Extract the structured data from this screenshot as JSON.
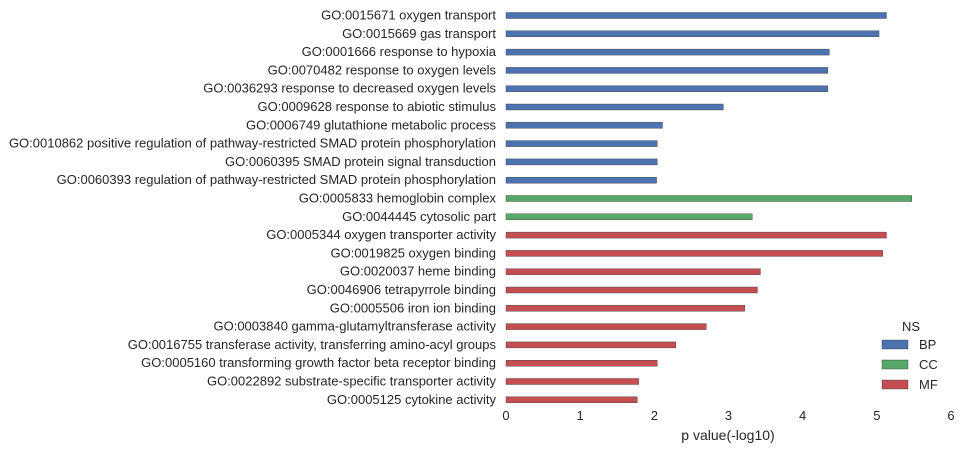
{
  "chart_data": {
    "type": "bar",
    "orientation": "horizontal",
    "title": "",
    "xlabel": "p value(-log10)",
    "ylabel": "",
    "xlim": [
      0,
      6
    ],
    "xticks": [
      "0",
      "1",
      "2",
      "3",
      "4",
      "5",
      "6"
    ],
    "grid": false,
    "legend": {
      "title": "NS",
      "placement": "bottom-right",
      "entries": [
        {
          "name": "BP",
          "color": "#4c72b0"
        },
        {
          "name": "CC",
          "color": "#55a868"
        },
        {
          "name": "MF",
          "color": "#c44e52"
        }
      ]
    },
    "bars": [
      {
        "label": "GO:0015671 oxygen transport",
        "value": 5.13,
        "ns": "BP"
      },
      {
        "label": "GO:0015669 gas transport",
        "value": 5.03,
        "ns": "BP"
      },
      {
        "label": "GO:0001666 response to hypoxia",
        "value": 4.36,
        "ns": "BP"
      },
      {
        "label": "GO:0070482 response to oxygen levels",
        "value": 4.34,
        "ns": "BP"
      },
      {
        "label": "GO:0036293 response to decreased oxygen levels",
        "value": 4.34,
        "ns": "BP"
      },
      {
        "label": "GO:0009628 response to abiotic stimulus",
        "value": 2.93,
        "ns": "BP"
      },
      {
        "label": "GO:0006749 glutathione metabolic process",
        "value": 2.11,
        "ns": "BP"
      },
      {
        "label": "GO:0010862 positive regulation of pathway-restricted SMAD protein phosphorylation",
        "value": 2.04,
        "ns": "BP"
      },
      {
        "label": "GO:0060395 SMAD protein signal transduction",
        "value": 2.04,
        "ns": "BP"
      },
      {
        "label": "GO:0060393 regulation of pathway-restricted SMAD protein phosphorylation",
        "value": 2.03,
        "ns": "BP"
      },
      {
        "label": "GO:0005833 hemoglobin complex",
        "value": 5.47,
        "ns": "CC"
      },
      {
        "label": "GO:0044445 cytosolic part",
        "value": 3.32,
        "ns": "CC"
      },
      {
        "label": "GO:0005344 oxygen transporter activity",
        "value": 5.13,
        "ns": "MF"
      },
      {
        "label": "GO:0019825 oxygen binding",
        "value": 5.08,
        "ns": "MF"
      },
      {
        "label": "GO:0020037 heme binding",
        "value": 3.43,
        "ns": "MF"
      },
      {
        "label": "GO:0046906 tetrapyrrole binding",
        "value": 3.39,
        "ns": "MF"
      },
      {
        "label": "GO:0005506 iron ion binding",
        "value": 3.22,
        "ns": "MF"
      },
      {
        "label": "GO:0003840 gamma-glutamyltransferase activity",
        "value": 2.7,
        "ns": "MF"
      },
      {
        "label": "GO:0016755 transferase activity, transferring amino-acyl groups",
        "value": 2.29,
        "ns": "MF"
      },
      {
        "label": "GO:0005160 transforming growth factor beta receptor binding",
        "value": 2.04,
        "ns": "MF"
      },
      {
        "label": "GO:0022892 substrate-specific transporter activity",
        "value": 1.79,
        "ns": "MF"
      },
      {
        "label": "GO:0005125 cytokine activity",
        "value": 1.77,
        "ns": "MF"
      }
    ]
  }
}
